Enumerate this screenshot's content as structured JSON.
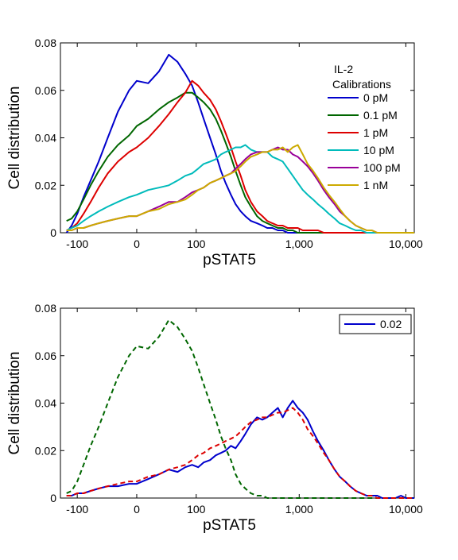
{
  "chart_data": [
    {
      "type": "line",
      "title": "",
      "xlabel": "pSTAT5",
      "ylabel": "Cell distribution",
      "x_scale": "asinh",
      "xlim": [
        -150,
        12000
      ],
      "ylim": [
        0,
        0.08
      ],
      "x_ticks": [
        -100,
        0,
        100,
        1000,
        10000
      ],
      "x_tick_labels": [
        "-100",
        "0",
        "100",
        "1,000",
        "10,000"
      ],
      "y_ticks": [
        0,
        0.02,
        0.04,
        0.06,
        0.08
      ],
      "y_tick_labels": [
        "0",
        "0.02",
        "0.04",
        "0.06",
        "0.08"
      ],
      "grid": false,
      "legend_title": [
        "IL-2",
        "Calibrations"
      ],
      "legend_position": "top-right",
      "legend_box": false,
      "x": [
        -130,
        -115,
        -100,
        -85,
        -70,
        -55,
        -40,
        -25,
        -10,
        0,
        15,
        30,
        45,
        60,
        75,
        90,
        105,
        120,
        140,
        160,
        180,
        200,
        225,
        250,
        280,
        310,
        350,
        400,
        450,
        500,
        560,
        630,
        700,
        780,
        870,
        970,
        1080,
        1200,
        1350,
        1500,
        1700,
        1900,
        2150,
        2400,
        2700,
        3000,
        3400,
        3800,
        4300,
        4800,
        5400,
        6000,
        7000,
        8000,
        9000,
        10000,
        11000,
        12000
      ],
      "series": [
        {
          "name": "0 pM",
          "color": "#0000cc",
          "dash": false,
          "values": [
            0.0,
            0.003,
            0.008,
            0.015,
            0.022,
            0.03,
            0.04,
            0.051,
            0.06,
            0.064,
            0.063,
            0.068,
            0.075,
            0.072,
            0.067,
            0.062,
            0.055,
            0.048,
            0.04,
            0.033,
            0.026,
            0.021,
            0.016,
            0.012,
            0.009,
            0.007,
            0.005,
            0.004,
            0.003,
            0.002,
            0.002,
            0.001,
            0.001,
            0.0,
            0.0,
            0.0,
            0.0,
            0.0,
            0.0,
            0.0,
            0.0,
            0.0,
            0.0,
            0.0,
            0.0,
            0.0,
            0.0,
            0.0,
            0.0,
            0.0,
            0.0,
            0.0,
            0.0,
            0.0,
            0.0,
            0.0,
            0.0,
            0.0
          ]
        },
        {
          "name": "0.1 pM",
          "color": "#006600",
          "dash": false,
          "values": [
            0.005,
            0.006,
            0.009,
            0.014,
            0.02,
            0.026,
            0.032,
            0.037,
            0.041,
            0.045,
            0.048,
            0.052,
            0.055,
            0.057,
            0.059,
            0.059,
            0.057,
            0.055,
            0.052,
            0.048,
            0.043,
            0.038,
            0.032,
            0.026,
            0.02,
            0.015,
            0.011,
            0.007,
            0.005,
            0.004,
            0.003,
            0.002,
            0.002,
            0.001,
            0.001,
            0.0,
            0.0,
            0.0,
            0.0,
            0.0,
            0.0,
            0.0,
            0.0,
            0.0,
            0.0,
            0.0,
            0.0,
            0.0,
            0.0,
            0.0,
            0.0,
            0.0,
            0.0,
            0.0,
            0.0,
            0.0,
            0.0,
            0.0
          ]
        },
        {
          "name": "1 pM",
          "color": "#dd0000",
          "dash": false,
          "values": [
            0.001,
            0.002,
            0.004,
            0.008,
            0.013,
            0.019,
            0.025,
            0.03,
            0.034,
            0.036,
            0.04,
            0.045,
            0.05,
            0.055,
            0.059,
            0.064,
            0.062,
            0.059,
            0.056,
            0.052,
            0.047,
            0.042,
            0.036,
            0.03,
            0.024,
            0.018,
            0.013,
            0.009,
            0.007,
            0.005,
            0.004,
            0.003,
            0.003,
            0.002,
            0.002,
            0.002,
            0.001,
            0.001,
            0.001,
            0.001,
            0.0,
            0.0,
            0.0,
            0.0,
            0.0,
            0.0,
            0.0,
            0.0,
            0.0,
            0.0,
            0.0,
            0.0,
            0.0,
            0.0,
            0.0,
            0.0,
            0.0,
            0.0
          ]
        },
        {
          "name": "10 pM",
          "color": "#00bbbb",
          "dash": false,
          "values": [
            0.001,
            0.002,
            0.003,
            0.005,
            0.007,
            0.009,
            0.011,
            0.013,
            0.015,
            0.016,
            0.018,
            0.019,
            0.02,
            0.022,
            0.024,
            0.025,
            0.027,
            0.029,
            0.03,
            0.031,
            0.033,
            0.034,
            0.035,
            0.036,
            0.036,
            0.037,
            0.035,
            0.034,
            0.034,
            0.034,
            0.032,
            0.031,
            0.03,
            0.027,
            0.024,
            0.021,
            0.018,
            0.016,
            0.014,
            0.012,
            0.01,
            0.008,
            0.006,
            0.004,
            0.003,
            0.002,
            0.001,
            0.001,
            0.0,
            0.0,
            0.0,
            0.0,
            0.0,
            0.0,
            0.0,
            0.0,
            0.0,
            0.0
          ]
        },
        {
          "name": "100 pM",
          "color": "#990099",
          "dash": false,
          "values": [
            0.001,
            0.001,
            0.002,
            0.002,
            0.003,
            0.004,
            0.005,
            0.006,
            0.007,
            0.007,
            0.009,
            0.011,
            0.013,
            0.013,
            0.015,
            0.017,
            0.018,
            0.019,
            0.021,
            0.022,
            0.023,
            0.024,
            0.025,
            0.027,
            0.029,
            0.031,
            0.033,
            0.034,
            0.034,
            0.034,
            0.035,
            0.036,
            0.035,
            0.035,
            0.033,
            0.032,
            0.03,
            0.028,
            0.025,
            0.022,
            0.018,
            0.015,
            0.012,
            0.009,
            0.007,
            0.005,
            0.003,
            0.002,
            0.001,
            0.001,
            0.0,
            0.0,
            0.0,
            0.0,
            0.0,
            0.0,
            0.0,
            0.0
          ]
        },
        {
          "name": "1 nM",
          "color": "#ccaa00",
          "dash": false,
          "values": [
            0.001,
            0.001,
            0.002,
            0.002,
            0.003,
            0.004,
            0.005,
            0.006,
            0.007,
            0.007,
            0.009,
            0.01,
            0.012,
            0.013,
            0.014,
            0.016,
            0.018,
            0.019,
            0.021,
            0.022,
            0.023,
            0.024,
            0.025,
            0.026,
            0.028,
            0.03,
            0.032,
            0.033,
            0.034,
            0.034,
            0.035,
            0.035,
            0.036,
            0.034,
            0.036,
            0.037,
            0.033,
            0.029,
            0.026,
            0.023,
            0.019,
            0.016,
            0.013,
            0.01,
            0.007,
            0.005,
            0.003,
            0.002,
            0.001,
            0.001,
            0.0,
            0.0,
            0.0,
            0.0,
            0.0,
            0.0,
            0.0,
            0.0
          ]
        }
      ]
    },
    {
      "type": "line",
      "title": "",
      "xlabel": "pSTAT5",
      "ylabel": "Cell distribution",
      "x_scale": "asinh",
      "xlim": [
        -150,
        12000
      ],
      "ylim": [
        0,
        0.08
      ],
      "x_ticks": [
        -100,
        0,
        100,
        1000,
        10000
      ],
      "x_tick_labels": [
        "-100",
        "0",
        "100",
        "1,000",
        "10,000"
      ],
      "y_ticks": [
        0,
        0.02,
        0.04,
        0.06,
        0.08
      ],
      "y_tick_labels": [
        "0",
        "0.02",
        "0.04",
        "0.06",
        "0.08"
      ],
      "grid": false,
      "legend_position": "top-right",
      "legend_box": true,
      "x": [
        -130,
        -115,
        -100,
        -85,
        -70,
        -55,
        -40,
        -25,
        -10,
        0,
        15,
        30,
        45,
        60,
        75,
        90,
        105,
        120,
        140,
        160,
        180,
        200,
        225,
        250,
        280,
        310,
        350,
        400,
        450,
        500,
        560,
        630,
        700,
        780,
        870,
        970,
        1080,
        1200,
        1350,
        1500,
        1700,
        1900,
        2150,
        2400,
        2700,
        3000,
        3400,
        3800,
        4300,
        4800,
        5400,
        6000,
        7000,
        8000,
        9000,
        10000,
        11000,
        12000
      ],
      "series": [
        {
          "name": "0.02",
          "color": "#0000cc",
          "dash": false,
          "in_legend": true,
          "values": [
            0.001,
            0.001,
            0.002,
            0.002,
            0.003,
            0.004,
            0.005,
            0.005,
            0.006,
            0.006,
            0.008,
            0.01,
            0.012,
            0.011,
            0.013,
            0.014,
            0.013,
            0.015,
            0.016,
            0.018,
            0.019,
            0.02,
            0.022,
            0.021,
            0.024,
            0.027,
            0.031,
            0.034,
            0.033,
            0.034,
            0.036,
            0.038,
            0.034,
            0.038,
            0.041,
            0.038,
            0.036,
            0.033,
            0.028,
            0.024,
            0.02,
            0.016,
            0.012,
            0.009,
            0.007,
            0.005,
            0.003,
            0.002,
            0.001,
            0.001,
            0.001,
            0.0,
            0.0,
            0.0,
            0.001,
            0.0,
            0.0,
            0.0
          ]
        },
        {
          "name": "",
          "color": "#006600",
          "dash": true,
          "in_legend": false,
          "values": [
            0.002,
            0.003,
            0.007,
            0.014,
            0.022,
            0.03,
            0.04,
            0.051,
            0.06,
            0.064,
            0.063,
            0.068,
            0.075,
            0.072,
            0.067,
            0.062,
            0.055,
            0.048,
            0.04,
            0.033,
            0.026,
            0.021,
            0.016,
            0.01,
            0.006,
            0.004,
            0.002,
            0.001,
            0.001,
            0.0,
            0.0,
            0.0,
            0.0,
            0.0,
            0.0,
            0.0,
            0.0,
            0.0,
            0.0,
            0.0,
            0.0,
            0.0,
            0.0,
            0.0,
            0.0,
            0.0,
            0.0,
            0.0,
            0.0,
            0.0,
            0.0,
            0.0,
            0.0,
            0.0,
            0.0,
            0.0,
            0.0,
            0.0
          ]
        },
        {
          "name": "",
          "color": "#dd0000",
          "dash": true,
          "in_legend": false,
          "values": [
            0.001,
            0.001,
            0.002,
            0.002,
            0.003,
            0.004,
            0.005,
            0.006,
            0.007,
            0.007,
            0.009,
            0.01,
            0.012,
            0.013,
            0.014,
            0.016,
            0.018,
            0.019,
            0.021,
            0.022,
            0.023,
            0.024,
            0.025,
            0.026,
            0.028,
            0.03,
            0.032,
            0.033,
            0.034,
            0.034,
            0.035,
            0.036,
            0.036,
            0.037,
            0.038,
            0.036,
            0.033,
            0.029,
            0.026,
            0.023,
            0.019,
            0.016,
            0.012,
            0.009,
            0.007,
            0.005,
            0.003,
            0.002,
            0.001,
            0.001,
            0.0,
            0.0,
            0.0,
            0.0,
            0.0,
            0.0,
            0.0,
            0.0
          ]
        }
      ]
    }
  ]
}
